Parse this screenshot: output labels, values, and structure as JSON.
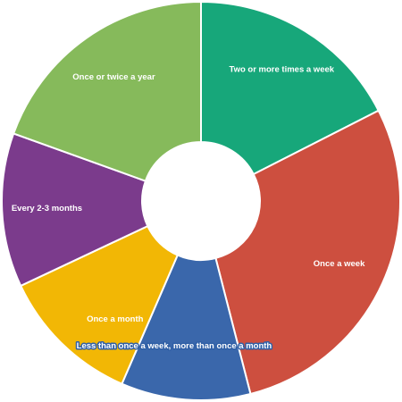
{
  "chart_data": {
    "type": "pie",
    "style": "donut",
    "title": "",
    "categories": [
      "Two or more times a week",
      "Once a week",
      "Less than once a week, more than once a month",
      "Once a month",
      "Every 2-3 months",
      "Once or twice a year"
    ],
    "values": [
      17.5,
      28.5,
      10.5,
      11.5,
      12.5,
      19.5
    ],
    "unit": "%",
    "colors": [
      "#17a77a",
      "#cd4f3f",
      "#3a67ab",
      "#f2b705",
      "#7b3b8c",
      "#86ba5b"
    ],
    "legend": "none",
    "labels_on_slices": true
  }
}
